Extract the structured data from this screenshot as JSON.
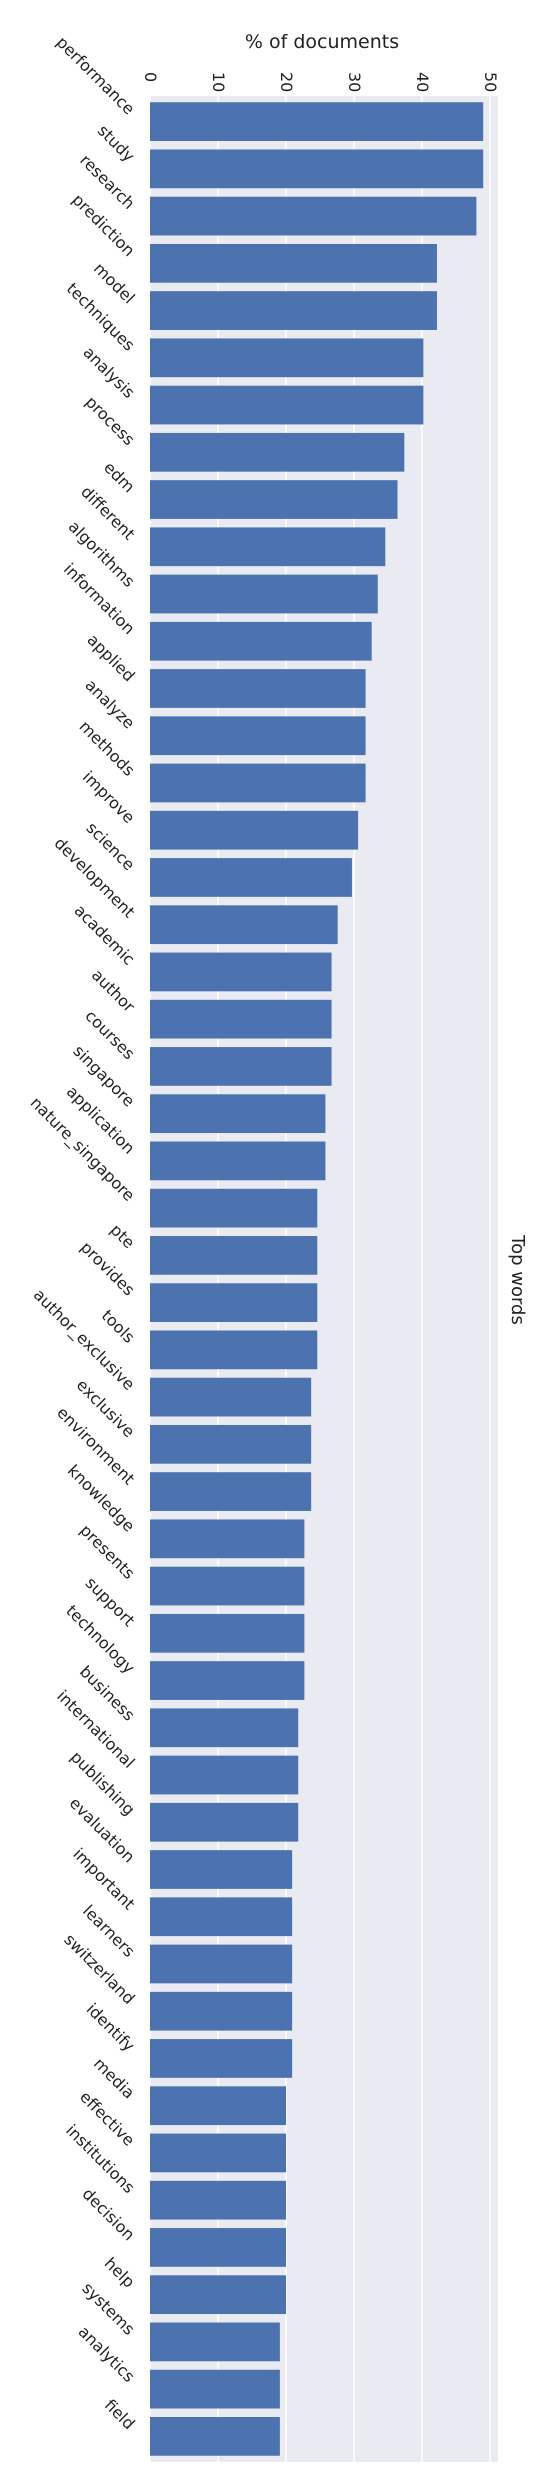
{
  "chart_data": {
    "type": "bar",
    "orientation": "horizontal",
    "title": "% of documents",
    "side_label": "Top words",
    "xlabel": "% of documents",
    "ylabel": "Top words",
    "xlim": [
      0,
      50
    ],
    "xticks": [
      "0",
      "10",
      "20",
      "30",
      "40",
      "50"
    ],
    "xtick_values": [
      0,
      10,
      20,
      30,
      40,
      50
    ],
    "grid": true,
    "colors": {
      "bar": "#4c72b0",
      "plot_bg": "#eaeaf2",
      "grid": "#ffffff"
    },
    "categories": [
      "performance",
      "study",
      "research",
      "prediction",
      "model",
      "techniques",
      "analysis",
      "process",
      "edm",
      "different",
      "algorithms",
      "information",
      "applied",
      "analyze",
      "methods",
      "improve",
      "science",
      "development",
      "academic",
      "author",
      "courses",
      "singapore",
      "application",
      "nature_singapore",
      "pte",
      "provides",
      "tools",
      "author_exclusive",
      "exclusive",
      "environment",
      "knowledge",
      "presents",
      "support",
      "technology",
      "business",
      "international",
      "publishing",
      "evaluation",
      "important",
      "learners",
      "switzerland",
      "identify",
      "media",
      "effective",
      "institutions",
      "decision",
      "help",
      "systems",
      "analytics",
      "field"
    ],
    "values": [
      49.0,
      49.0,
      48.0,
      42.2,
      42.2,
      40.2,
      40.2,
      37.4,
      36.4,
      34.6,
      33.5,
      32.6,
      31.7,
      31.7,
      31.7,
      30.6,
      29.7,
      27.6,
      26.7,
      26.7,
      26.7,
      25.8,
      25.8,
      24.6,
      24.6,
      24.6,
      24.6,
      23.7,
      23.7,
      23.7,
      22.7,
      22.7,
      22.7,
      22.7,
      21.8,
      21.8,
      21.8,
      20.9,
      20.9,
      20.9,
      20.9,
      20.9,
      20.0,
      20.0,
      20.0,
      20.0,
      20.0,
      19.1,
      19.1,
      19.1
    ]
  }
}
